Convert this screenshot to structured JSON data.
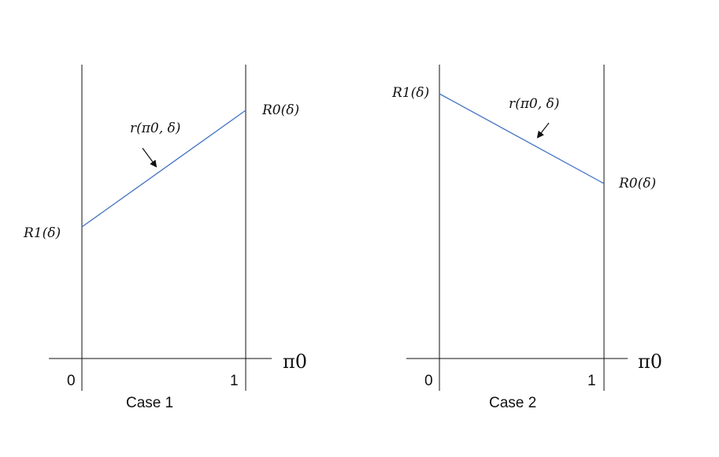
{
  "panels": [
    {
      "caption": "Case 1",
      "x_axis_label": "π0",
      "x_ticks": [
        "0",
        "1"
      ],
      "curve_label": "r(π0, δ)",
      "left_label": "R1(δ)",
      "right_label": "R0(δ)",
      "line_color": "#4472c4"
    },
    {
      "caption": "Case 2",
      "x_axis_label": "π0",
      "x_ticks": [
        "0",
        "1"
      ],
      "curve_label": "r(π0, δ)",
      "left_label": "R1(δ)",
      "right_label": "R0(δ)",
      "line_color": "#4472c4"
    }
  ]
}
